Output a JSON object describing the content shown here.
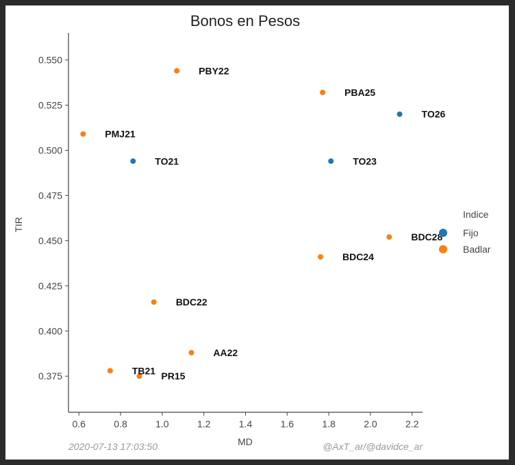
{
  "chart_data": {
    "type": "scatter",
    "title": "Bonos en Pesos",
    "xlabel": "MD",
    "ylabel": "TIR",
    "xlim": [
      0.55,
      2.25
    ],
    "ylim": [
      0.355,
      0.565
    ],
    "xticks": [
      "0.6",
      "0.8",
      "1.0",
      "1.2",
      "1.4",
      "1.6",
      "1.8",
      "2.0",
      "2.2"
    ],
    "yticks": [
      "0.375",
      "0.400",
      "0.425",
      "0.450",
      "0.475",
      "0.500",
      "0.525",
      "0.550"
    ],
    "legend": {
      "title": "Indice",
      "placement": "right",
      "entries": [
        {
          "name": "Fijo",
          "color": "#1f77b4"
        },
        {
          "name": "Badlar",
          "color": "#ff7f0e"
        }
      ]
    },
    "grid": false,
    "series": [
      {
        "name": "Fijo",
        "color": "#1f77b4",
        "points": [
          {
            "label": "TO21",
            "x": 0.86,
            "y": 0.494
          },
          {
            "label": "TO23",
            "x": 1.81,
            "y": 0.494
          },
          {
            "label": "TO26",
            "x": 2.14,
            "y": 0.52
          }
        ]
      },
      {
        "name": "Badlar",
        "color": "#ff7f0e",
        "points": [
          {
            "label": "PMJ21",
            "x": 0.62,
            "y": 0.509
          },
          {
            "label": "PBY22",
            "x": 1.07,
            "y": 0.544
          },
          {
            "label": "PBA25",
            "x": 1.77,
            "y": 0.532
          },
          {
            "label": "BDC28",
            "x": 2.09,
            "y": 0.452
          },
          {
            "label": "BDC24",
            "x": 1.76,
            "y": 0.441
          },
          {
            "label": "BDC22",
            "x": 0.96,
            "y": 0.416
          },
          {
            "label": "AA22",
            "x": 1.14,
            "y": 0.388
          },
          {
            "label": "TB21",
            "x": 0.75,
            "y": 0.378
          },
          {
            "label": "PR15",
            "x": 0.89,
            "y": 0.375
          }
        ]
      }
    ]
  },
  "footer": {
    "timestamp": "2020-07-13 17:03:50",
    "credit": "@AxT_ar/@davidce_ar"
  }
}
